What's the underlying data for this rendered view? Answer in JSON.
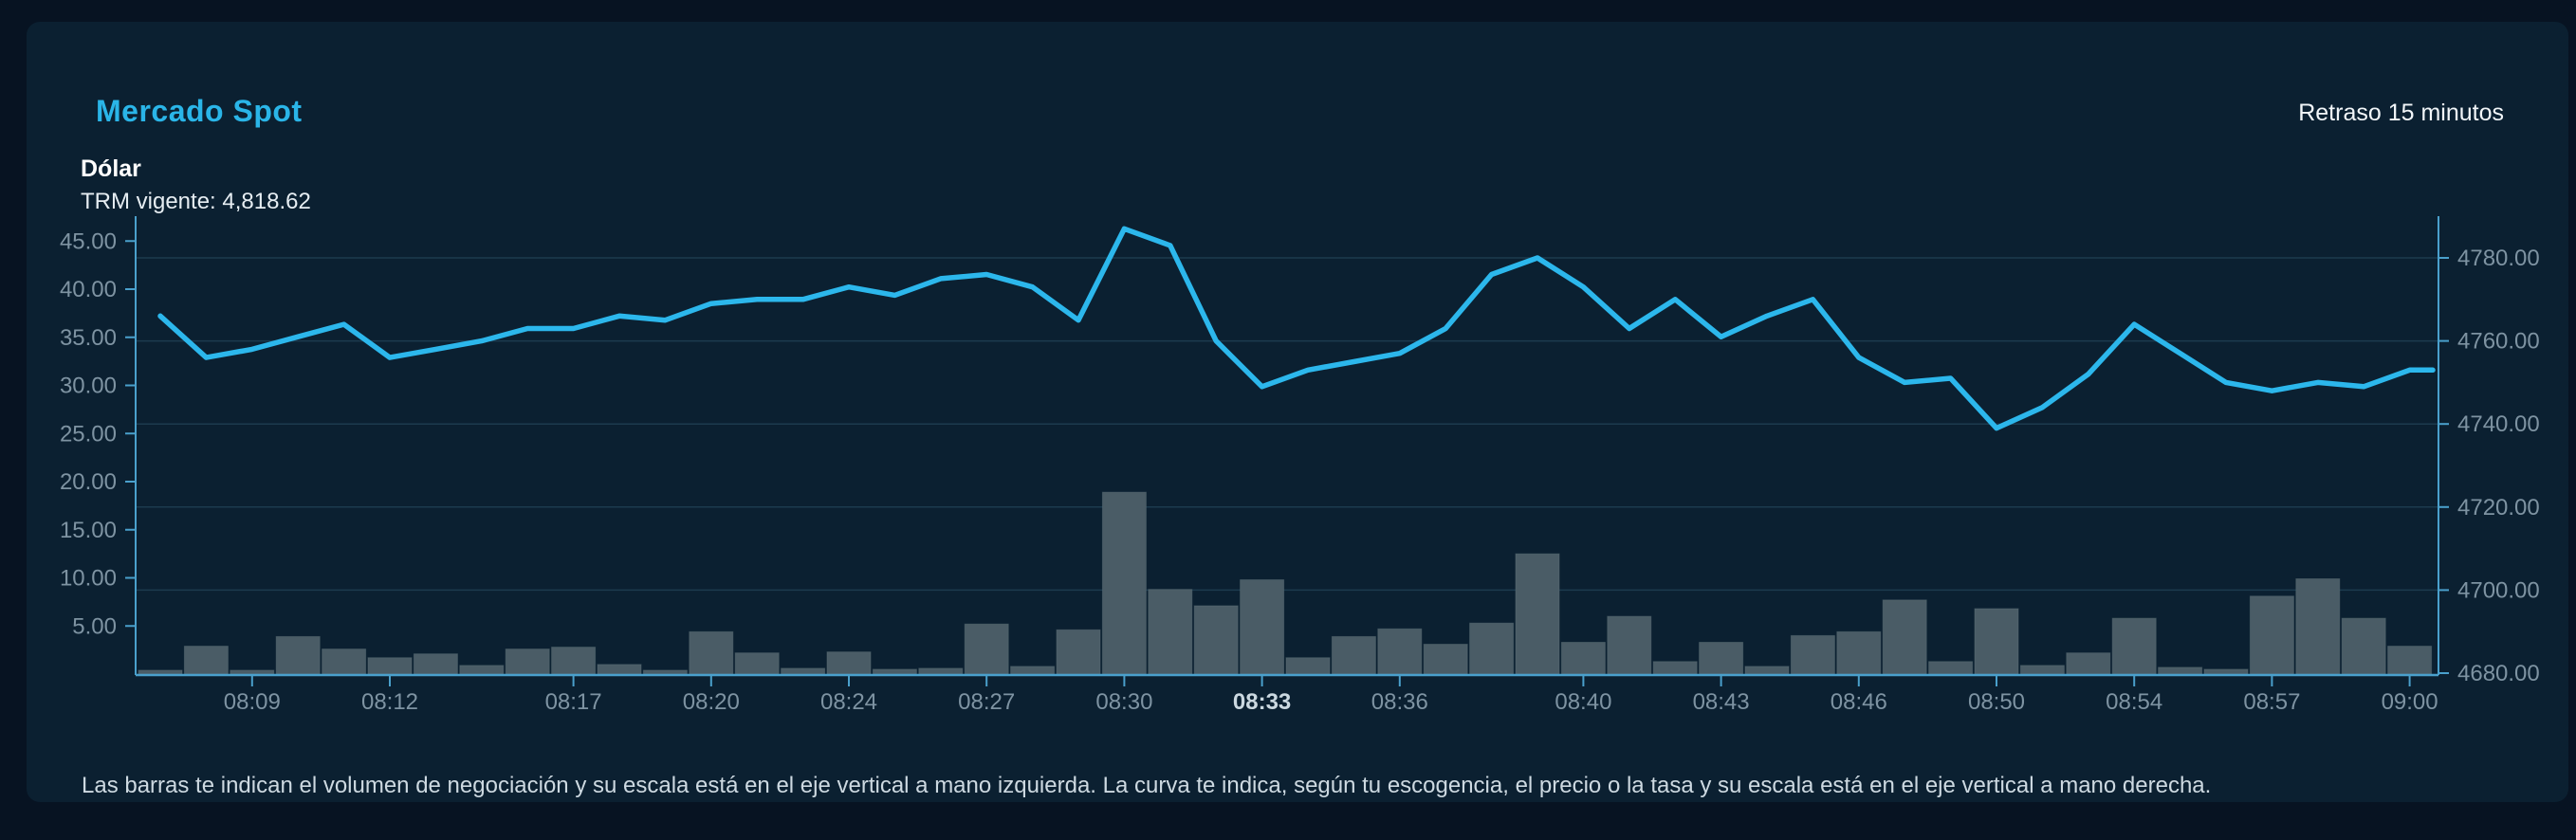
{
  "header": {
    "title": "Mercado Spot",
    "delay_badge": "Retraso 15 minutos",
    "instrument": "Dólar",
    "trm_line": "TRM vigente: 4,818.62"
  },
  "footnote": "Las barras te indican el volumen de negociación y su escala está en el eje vertical a mano izquierda. La curva te indica, según tu escogencia, el precio o la tasa y su escala está en el eje vertical a mano derecha.",
  "chart_data": {
    "type": "combo-bar-line",
    "series": [
      {
        "name": "volumen",
        "type": "bar",
        "axis": "left",
        "values": [
          0.4,
          2.9,
          0.4,
          3.9,
          2.6,
          1.7,
          2.1,
          0.9,
          2.6,
          2.8,
          1.0,
          0.4,
          4.4,
          2.2,
          0.6,
          2.3,
          0.5,
          0.6,
          5.2,
          0.8,
          4.6,
          18.9,
          8.8,
          7.1,
          9.8,
          1.7,
          3.9,
          4.7,
          3.1,
          5.3,
          12.5,
          3.3,
          6.0,
          1.3,
          3.3,
          0.8,
          4.0,
          4.4,
          7.7,
          1.3,
          6.8,
          0.9,
          2.2,
          5.8,
          0.7,
          0.5,
          8.1,
          9.9,
          5.8,
          2.9
        ]
      },
      {
        "name": "precio-tasa",
        "type": "line",
        "axis": "right",
        "values": [
          4766,
          4756,
          4758,
          4761,
          4764,
          4756,
          4758,
          4760,
          4763,
          4763,
          4766,
          4765,
          4769,
          4770,
          4770,
          4773,
          4771,
          4775,
          4776,
          4773,
          4765,
          4787,
          4783,
          4760,
          4749,
          4753,
          4755,
          4757,
          4763,
          4776,
          4780,
          4773,
          4763,
          4770,
          4761,
          4766,
          4770,
          4756,
          4750,
          4751,
          4739,
          4744,
          4752,
          4764,
          4757,
          4750,
          4748,
          4750,
          4749,
          4753
        ]
      }
    ],
    "x_ticks": [
      {
        "label": "08:09",
        "index": 2
      },
      {
        "label": "08:12",
        "index": 5
      },
      {
        "label": "08:17",
        "index": 9
      },
      {
        "label": "08:20",
        "index": 12
      },
      {
        "label": "08:24",
        "index": 15
      },
      {
        "label": "08:27",
        "index": 18
      },
      {
        "label": "08:30",
        "index": 21
      },
      {
        "label": "08:33",
        "index": 24
      },
      {
        "label": "08:36",
        "index": 27
      },
      {
        "label": "08:40",
        "index": 31
      },
      {
        "label": "08:43",
        "index": 34
      },
      {
        "label": "08:46",
        "index": 37
      },
      {
        "label": "08:50",
        "index": 40
      },
      {
        "label": "08:54",
        "index": 43
      },
      {
        "label": "08:57",
        "index": 46
      },
      {
        "label": "09:00",
        "index": 49
      }
    ],
    "highlighted_x_tick": "08:33",
    "left_axis": {
      "ticks": [
        "5.00",
        "10.00",
        "15.00",
        "20.00",
        "25.00",
        "30.00",
        "35.00",
        "40.00",
        "45.00"
      ],
      "min": 0,
      "max": 47.5
    },
    "right_axis": {
      "ticks": [
        "4680.00",
        "4700.00",
        "4720.00",
        "4740.00",
        "4760.00",
        "4780.00"
      ],
      "min": 4674,
      "max": 4790
    },
    "colors": {
      "line": "#2cb7ec",
      "bars": "#4a5c66",
      "bar_edge": "#5e7078",
      "axis": "#4aa0cc",
      "grid": "#1c3a4e",
      "tick_text": "#7e93a2",
      "highlight_tick_text": "#cbd8e0",
      "accent": "#2ab5e8"
    }
  }
}
